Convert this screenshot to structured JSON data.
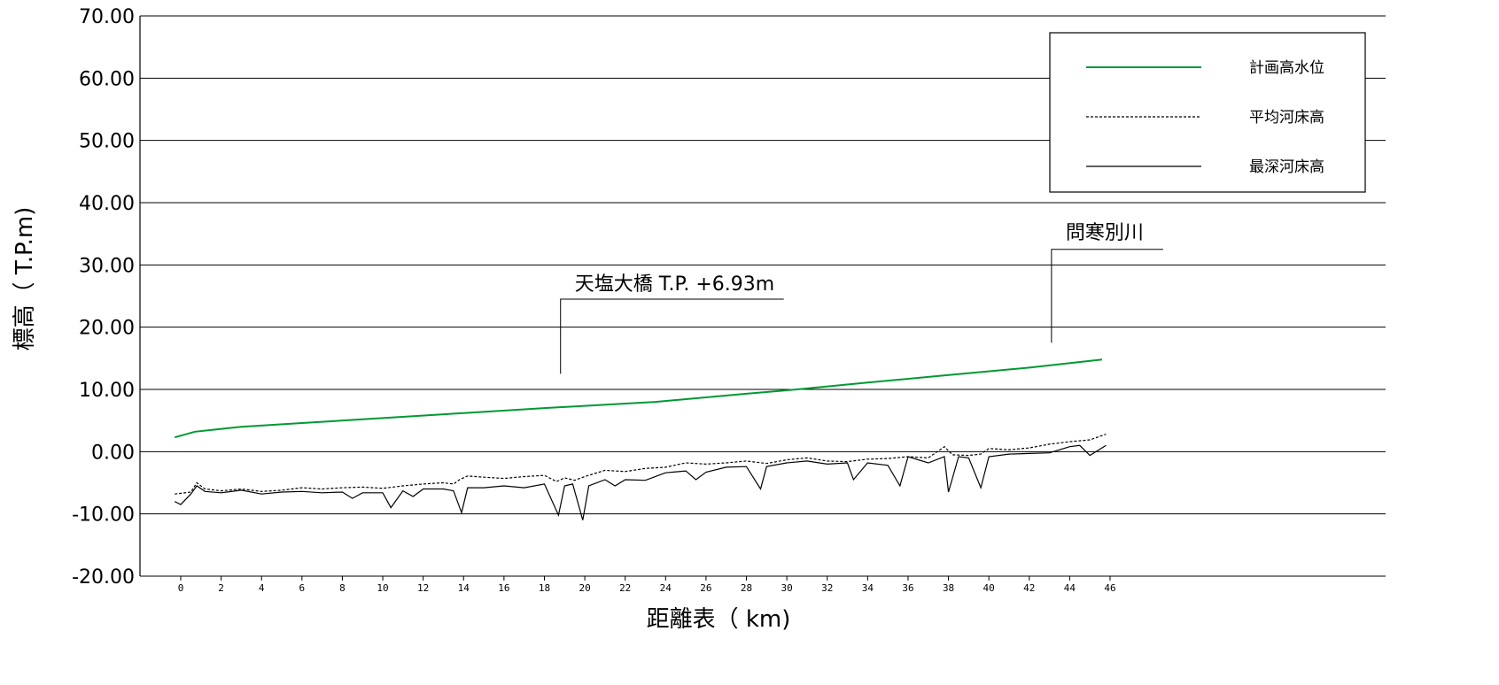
{
  "chart_data": {
    "type": "line",
    "xlabel": "距離表（ km)",
    "ylabel": "標高（ T.P.m)",
    "xlim": [
      -1,
      59
    ],
    "ylim": [
      -20,
      70
    ],
    "y_ticks": [
      "70.00",
      "60.00",
      "50.00",
      "40.00",
      "30.00",
      "20.00",
      "10.00",
      "0.00",
      "-10.00",
      "-20.00"
    ],
    "y_tick_values": [
      70,
      60,
      50,
      40,
      30,
      20,
      10,
      0,
      -10,
      -20
    ],
    "x_ticks": [
      "0",
      "2",
      "4",
      "6",
      "8",
      "10",
      "12",
      "14",
      "16",
      "18",
      "20",
      "22",
      "24",
      "26",
      "28",
      "30",
      "32",
      "34",
      "36",
      "38",
      "40",
      "42",
      "44",
      "46"
    ],
    "x_tick_values": [
      0,
      2,
      4,
      6,
      8,
      10,
      12,
      14,
      16,
      18,
      20,
      22,
      24,
      26,
      28,
      30,
      32,
      34,
      36,
      38,
      40,
      42,
      44,
      46
    ],
    "grid": "horizontal",
    "legend_position": "top-right",
    "series": [
      {
        "name": "計画高水位",
        "color": "#009933",
        "style": "solid",
        "x": [
          -0.3,
          0.7,
          3,
          6,
          10,
          14,
          18,
          23.5,
          28,
          30.5,
          34,
          38,
          42,
          45.6
        ],
        "y": [
          2.3,
          3.2,
          4.0,
          4.6,
          5.4,
          6.2,
          7.0,
          8.0,
          9.3,
          10.0,
          11.1,
          12.3,
          13.5,
          14.8
        ]
      },
      {
        "name": "平均河床高",
        "color": "#000000",
        "style": "dashed",
        "x": [
          -0.3,
          0.5,
          0.8,
          1.2,
          2,
          3,
          4,
          5,
          6,
          7,
          8,
          9,
          10,
          11,
          12,
          13,
          13.5,
          13.8,
          14.2,
          15,
          16,
          17,
          18,
          18.6,
          19,
          19.5,
          20,
          21,
          22,
          23,
          24,
          25,
          26,
          27,
          28,
          29,
          30,
          31,
          32,
          33,
          34,
          35,
          36,
          37,
          37.8,
          38.2,
          39,
          39.6,
          40,
          41,
          42,
          43,
          44,
          45,
          45.8
        ],
        "y": [
          -6.8,
          -6.5,
          -5.0,
          -6.0,
          -6.3,
          -6.0,
          -6.4,
          -6.2,
          -5.8,
          -6.0,
          -5.8,
          -5.7,
          -5.9,
          -5.5,
          -5.2,
          -5.0,
          -5.2,
          -4.5,
          -3.9,
          -4.1,
          -4.3,
          -4.0,
          -3.8,
          -4.8,
          -4.2,
          -4.6,
          -4.0,
          -3.0,
          -3.2,
          -2.7,
          -2.5,
          -1.8,
          -2.0,
          -1.8,
          -1.5,
          -1.9,
          -1.3,
          -1.0,
          -1.5,
          -1.6,
          -1.2,
          -1.1,
          -0.8,
          -1.0,
          0.8,
          -0.5,
          -0.6,
          -0.4,
          0.5,
          0.3,
          0.6,
          1.2,
          1.6,
          1.9,
          2.8
        ]
      },
      {
        "name": "最深河床高",
        "color": "#000000",
        "style": "solid",
        "x": [
          -0.3,
          0,
          0.5,
          0.8,
          1.2,
          2,
          3,
          4,
          5,
          6,
          7,
          8,
          8.5,
          9,
          10,
          10.4,
          11,
          11.5,
          12,
          13,
          13.5,
          13.9,
          14.2,
          15,
          16,
          17,
          18,
          18.7,
          19,
          19.4,
          19.9,
          20.2,
          21,
          21.5,
          22,
          23,
          24,
          25,
          25.5,
          26,
          27,
          28,
          28.7,
          29,
          30,
          31,
          32,
          33,
          33.3,
          34,
          35,
          35.6,
          36,
          37,
          37.8,
          38,
          38.5,
          39,
          39.6,
          40,
          41,
          42,
          43,
          44,
          44.5,
          45,
          45.8
        ],
        "y": [
          -8.0,
          -8.5,
          -6.8,
          -5.5,
          -6.4,
          -6.6,
          -6.2,
          -6.8,
          -6.5,
          -6.4,
          -6.6,
          -6.5,
          -7.5,
          -6.6,
          -6.6,
          -9.0,
          -6.3,
          -7.2,
          -6.0,
          -6.0,
          -6.3,
          -9.8,
          -5.8,
          -5.8,
          -5.5,
          -5.8,
          -5.2,
          -10.2,
          -5.5,
          -5.2,
          -11.0,
          -5.5,
          -4.5,
          -5.5,
          -4.5,
          -4.6,
          -3.4,
          -3.1,
          -4.5,
          -3.3,
          -2.5,
          -2.4,
          -6.0,
          -2.4,
          -1.8,
          -1.5,
          -2.0,
          -1.8,
          -4.5,
          -1.8,
          -2.2,
          -5.5,
          -0.8,
          -1.8,
          -0.8,
          -6.5,
          -0.8,
          -1.0,
          -5.8,
          -0.8,
          -0.4,
          -0.3,
          -0.2,
          0.8,
          1.0,
          -0.6,
          1.0
        ]
      }
    ],
    "annotations": [
      {
        "text": "天塩大橋  T.P. +6.93m",
        "x": 18.8
      },
      {
        "text": "問寒別川",
        "x": 43.1
      }
    ]
  }
}
